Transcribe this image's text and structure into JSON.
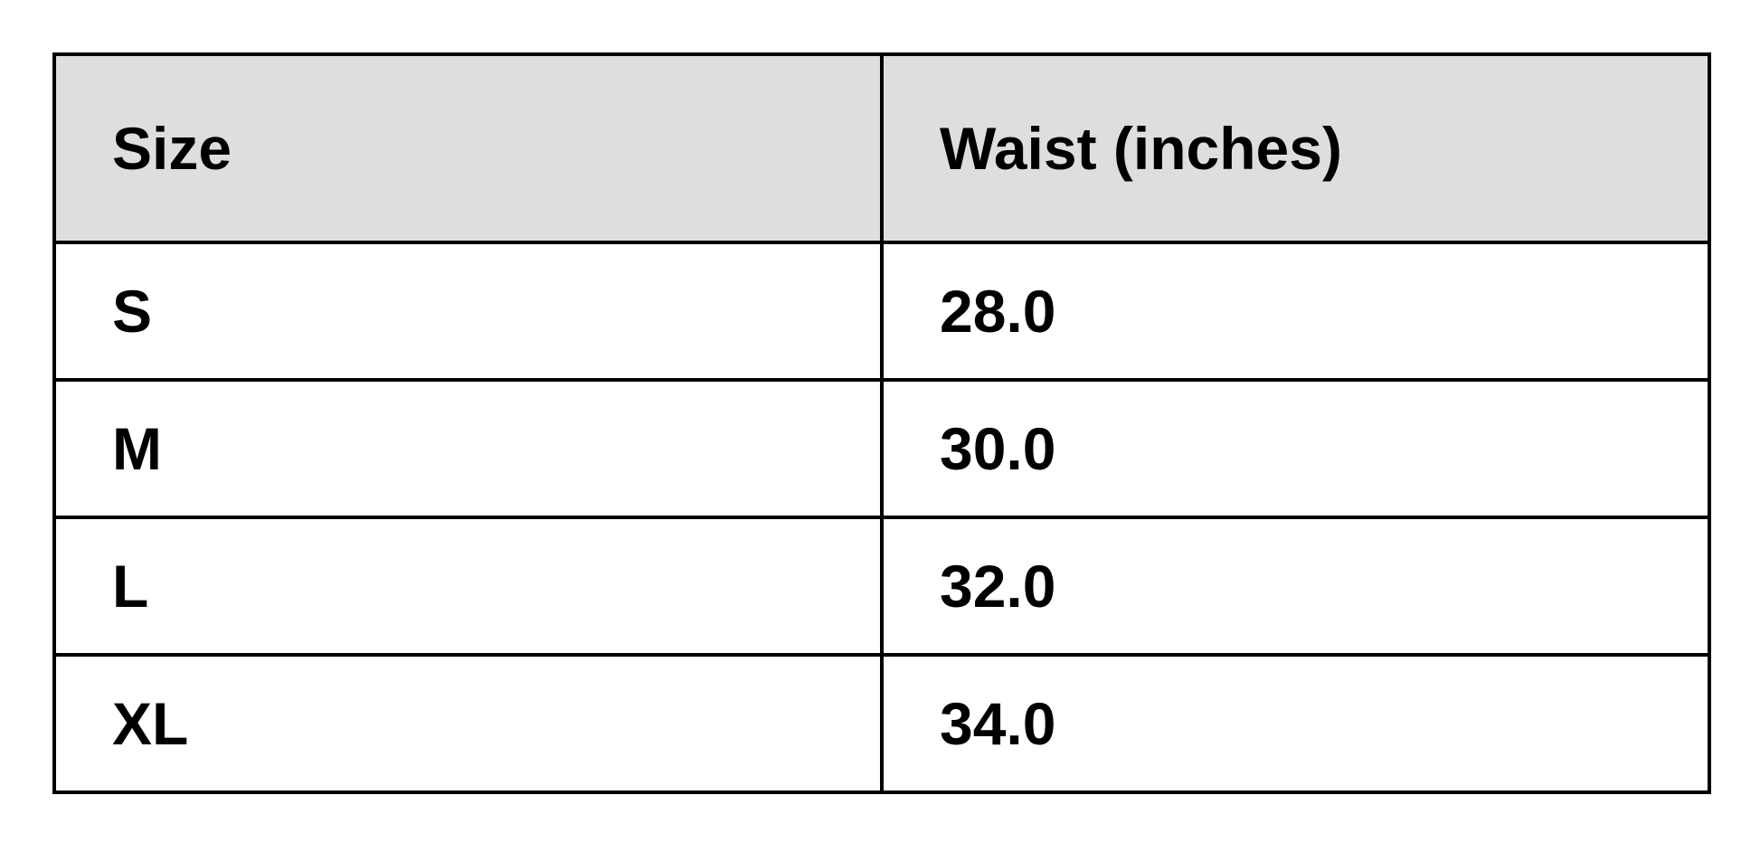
{
  "chart_data": {
    "type": "table",
    "title": "",
    "columns": [
      "Size",
      "Waist (inches)"
    ],
    "rows": [
      [
        "S",
        "28.0"
      ],
      [
        "M",
        "30.0"
      ],
      [
        "L",
        "32.0"
      ],
      [
        "XL",
        "34.0"
      ]
    ]
  },
  "colors": {
    "header_bg": "#dedede",
    "border": "#000000",
    "text": "#000000",
    "page_bg": "#ffffff"
  }
}
